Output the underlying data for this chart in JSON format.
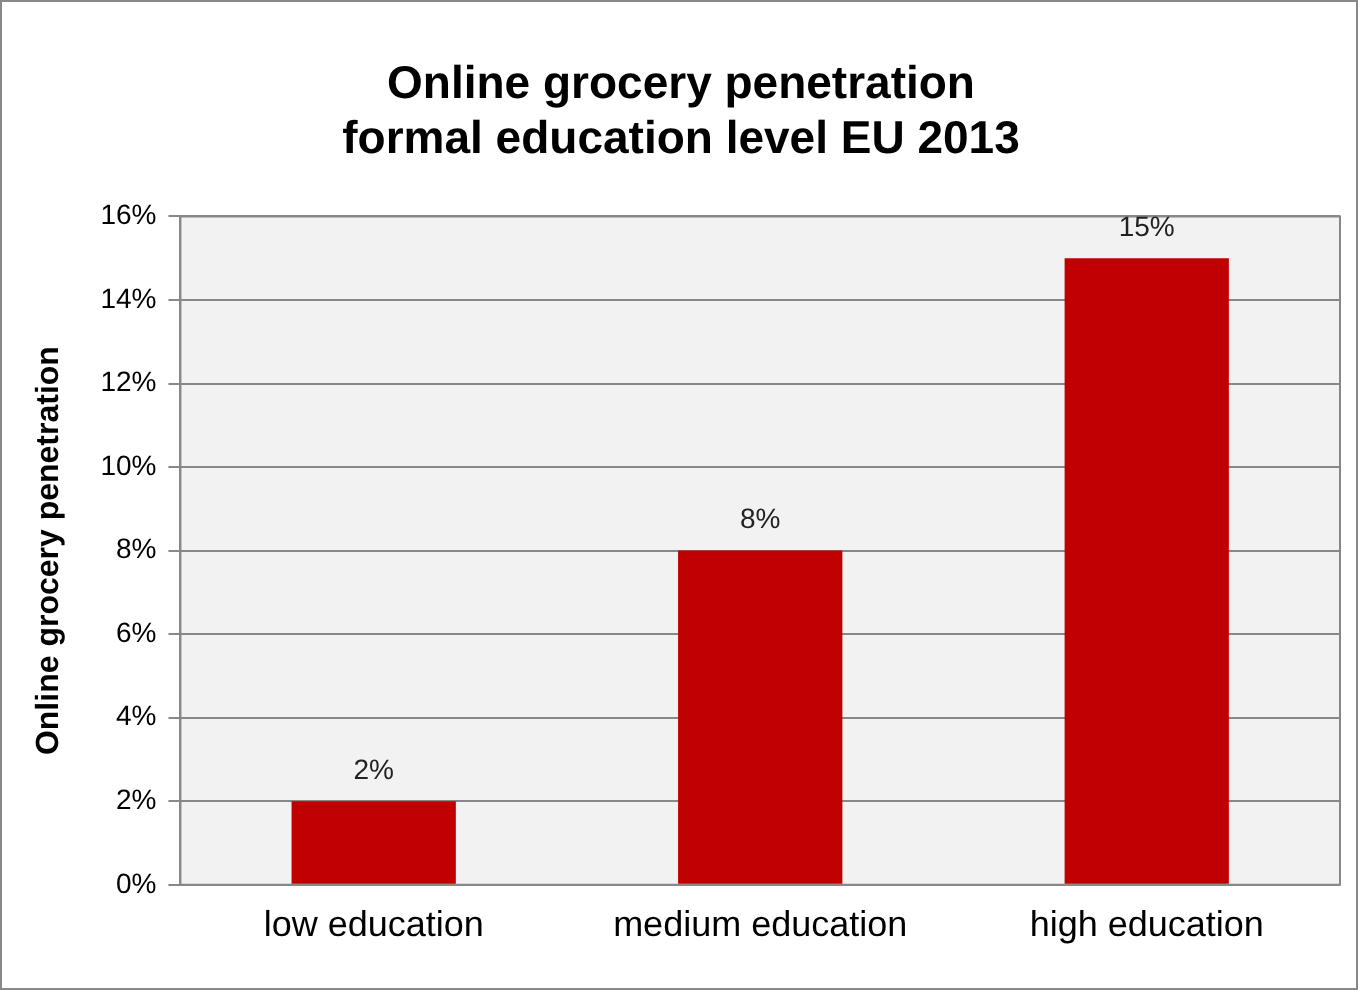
{
  "chart_data": {
    "type": "bar",
    "title": "Online grocery penetration\nformal education level EU 2013",
    "ylabel": "Online grocery penetration",
    "categories": [
      "low education",
      "medium education",
      "high education"
    ],
    "values": [
      2,
      8,
      15
    ],
    "color": "#c00000",
    "value_labels": [
      "2%",
      "8%",
      "15%"
    ],
    "ylim": [
      0,
      16
    ],
    "yticks": [
      {
        "value": 0,
        "label": "0%"
      },
      {
        "value": 2,
        "label": "2%"
      },
      {
        "value": 4,
        "label": "4%"
      },
      {
        "value": 6,
        "label": "6%"
      },
      {
        "value": 8,
        "label": "8%"
      },
      {
        "value": 10,
        "label": "10%"
      },
      {
        "value": 12,
        "label": "12%"
      },
      {
        "value": 14,
        "label": "14%"
      },
      {
        "value": 16,
        "label": "16%"
      }
    ],
    "grid": "y",
    "legend": false
  }
}
